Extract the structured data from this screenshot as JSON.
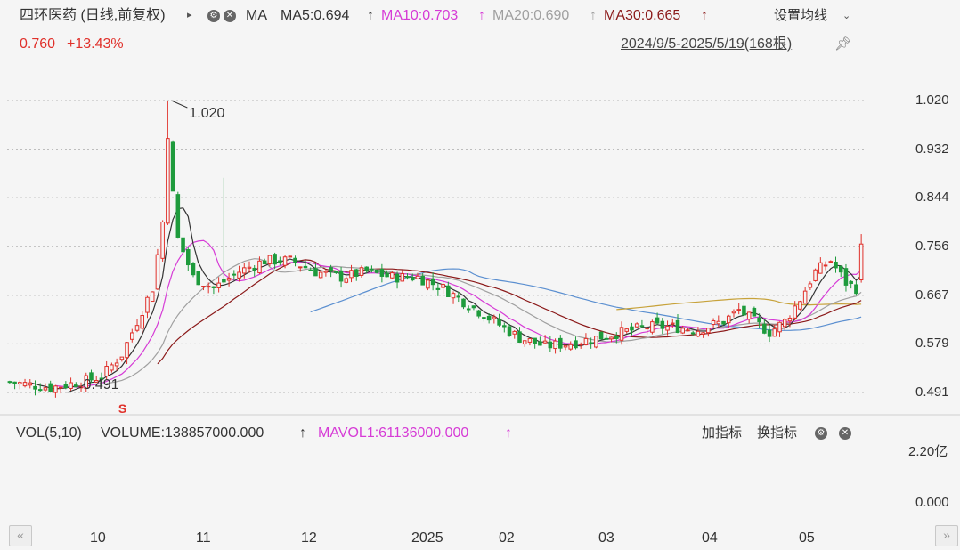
{
  "header": {
    "stock_name": "四环医药 (日线,前复权)",
    "ma_label": "MA",
    "ma5": "MA5:0.694",
    "ma10": "MA10:0.703",
    "ma20": "MA20:0.690",
    "ma30": "MA30:0.665",
    "arrow": "↑",
    "settings": "设置均线",
    "price": "0.760",
    "change": "+13.43%",
    "date_range": "2024/9/5-2025/5/19(168根)"
  },
  "colors": {
    "up": "#e0312b",
    "down": "#1e9b3c",
    "ma5": "#333333",
    "ma10": "#d63bd6",
    "ma20": "#a0a0a0",
    "ma30": "#8b1a1a",
    "ma60": "#5b8fd0",
    "ma120": "#c7a23a",
    "vol_ma5": "#a0a0a0",
    "vol_ma10": "#d63bd6"
  },
  "volume_panel": {
    "label": "VOL(5,10)",
    "volume": "VOLUME:138857000.000",
    "mavol": "MAVOL1:61136000.000",
    "arrow": "↑",
    "add_indicator": "加指标",
    "switch_indicator": "换指标",
    "top_tick": "2.20亿",
    "bottom_tick": "0.000"
  },
  "markers": {
    "high_label": "1.020",
    "low_label": "0.491",
    "s_marker": "S"
  },
  "chart_data": {
    "type": "candlestick",
    "y_ticks": [
      "1.020",
      "0.932",
      "0.844",
      "0.756",
      "0.667",
      "0.579",
      "0.491"
    ],
    "ylim": [
      0.465,
      1.045
    ],
    "x_ticks": [
      "10",
      "11",
      "12",
      "2025",
      "02",
      "03",
      "04",
      "05"
    ],
    "grid": true,
    "high": 1.02,
    "low": 0.491,
    "last_close": 0.76
  }
}
